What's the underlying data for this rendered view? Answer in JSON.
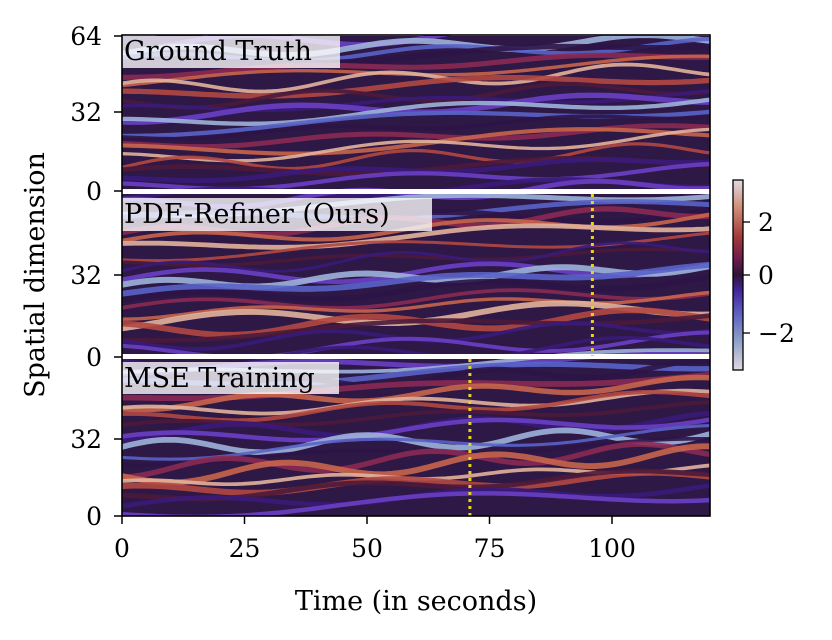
{
  "chart_data": {
    "type": "heatmap",
    "xlabel": "Time (in seconds)",
    "ylabel": "Spatial dimension",
    "xlim": [
      0,
      120
    ],
    "x_ticks": [
      "0",
      "25",
      "50",
      "75",
      "100"
    ],
    "x_tick_values": [
      0,
      25,
      50,
      75,
      100
    ],
    "y_ticks_per_panel": [
      "0",
      "32",
      "64"
    ],
    "panels": [
      {
        "label": "Ground Truth",
        "ylim": [
          0,
          64
        ],
        "y_tick_labels": [
          "64",
          "32",
          "0"
        ]
      },
      {
        "label": "PDE-Refiner (Ours)",
        "ylim": [
          0,
          64
        ],
        "y_tick_labels": [
          "0",
          "32"
        ],
        "divergence_time": 96
      },
      {
        "label": "MSE Training",
        "ylim": [
          0,
          64
        ],
        "y_tick_labels": [
          "0",
          "32",
          "0"
        ],
        "divergence_time": 71
      }
    ],
    "colorbar": {
      "range": [
        -3.3,
        3.3
      ],
      "tick_labels": [
        "2",
        "0",
        "−2"
      ],
      "tick_values": [
        2,
        0,
        -2
      ],
      "colormap": "twilight_shifted"
    },
    "colors": {
      "divergence_line": "#e6d51a",
      "panel_separator": "#ffffff"
    }
  }
}
